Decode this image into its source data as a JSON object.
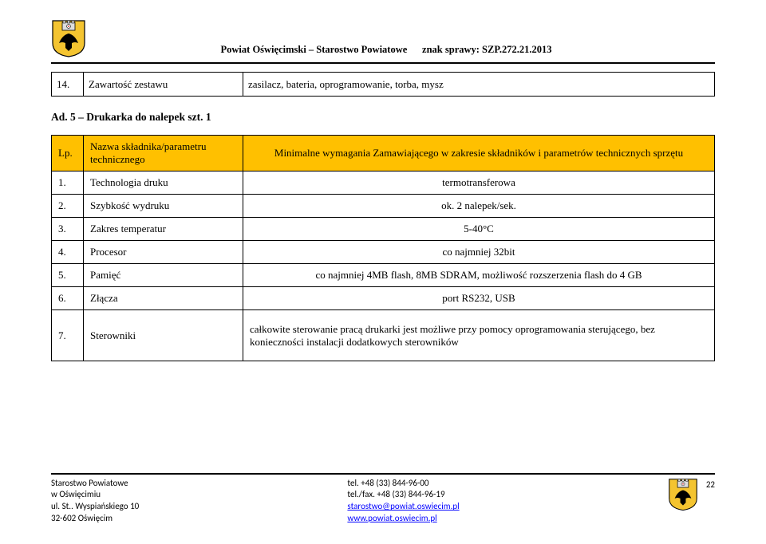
{
  "header": {
    "org": "Powiat Oświęcimski – Starostwo Powiatowe",
    "case": "znak sprawy: SZP.272.21.2013"
  },
  "top_row": {
    "num": "14.",
    "name": "Zawartość zestawu",
    "desc": "zasilacz, bateria, oprogramowanie, torba, mysz"
  },
  "section_title": "Ad. 5 – Drukarka do nalepek szt. 1",
  "table_header": {
    "col_num": "Lp.",
    "col_name": "Nazwa składnika/parametru technicznego",
    "col_val": "Minimalne wymagania Zamawiającego w zakresie składników i parametrów technicznych sprzętu"
  },
  "rows": [
    {
      "num": "1.",
      "name": "Technologia druku",
      "val": "termotransferowa",
      "align": "center"
    },
    {
      "num": "2.",
      "name": "Szybkość wydruku",
      "val": "ok. 2 nalepek/sek.",
      "align": "center"
    },
    {
      "num": "3.",
      "name": "Zakres temperatur",
      "val": "5-40°C",
      "align": "center"
    },
    {
      "num": "4.",
      "name": "Procesor",
      "val": "co najmniej 32bit",
      "align": "center"
    },
    {
      "num": "5.",
      "name": "Pamięć",
      "val": "co najmniej 4MB flash, 8MB SDRAM, możliwość rozszerzenia flash do 4 GB",
      "align": "center"
    },
    {
      "num": "6.",
      "name": "Złącza",
      "val": "port RS232, USB",
      "align": "center"
    },
    {
      "num": "7.",
      "name": "Sterowniki",
      "val": "całkowite sterowanie pracą drukarki jest możliwe przy pomocy oprogramowania sterującego, bez konieczności instalacji dodatkowych sterowników",
      "align": "left",
      "big": true
    }
  ],
  "footer": {
    "left": {
      "l1": "Starostwo Powiatowe",
      "l2": "w Oświęcimiu",
      "l3": "ul. St.. Wyspiańskiego 10",
      "l4": "32-602 Oświęcim"
    },
    "mid": {
      "l1": "tel. +48 (33) 844-96-00",
      "l2": "tel./fax. +48 (33) 844-96-19",
      "l3": "starostwo@powiat.oswiecim.pl",
      "l4": "www.powiat.oswiecim.pl"
    },
    "page": "22"
  },
  "colors": {
    "header_bg": "#ffc000",
    "link": "#0000ff",
    "border": "#000000"
  },
  "crest": {
    "shield_fill": "#f4c430",
    "shield_stroke": "#000000",
    "eagle_fill": "#000000",
    "tower_fill": "#dddddd"
  }
}
